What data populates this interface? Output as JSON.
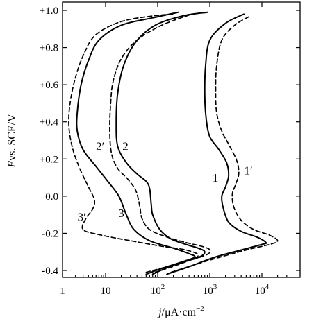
{
  "chart_data": {
    "type": "line",
    "xlabel_italic": "j",
    "xlabel_rest": "/μA·cm",
    "xlabel_sup": "−2",
    "ylabel_italic": "E",
    "ylabel_rest": "vs. SCE/V",
    "xscale": "log",
    "xlim": [
      1,
      30000
    ],
    "ylim": [
      -0.43,
      1.02
    ],
    "grid": false,
    "x_ticks": [
      {
        "value": 1,
        "base": "1",
        "sup": ""
      },
      {
        "value": 10,
        "base": "10",
        "sup": ""
      },
      {
        "value": 100,
        "base": "10",
        "sup": "2"
      },
      {
        "value": 1000,
        "base": "10",
        "sup": "3"
      },
      {
        "value": 10000,
        "base": "10",
        "sup": "4"
      }
    ],
    "y_ticks": [
      {
        "value": 1.0,
        "label": "+1.0"
      },
      {
        "value": 0.8,
        "label": "+0.8"
      },
      {
        "value": 0.6,
        "label": "+0.6"
      },
      {
        "value": 0.4,
        "label": "+0.4"
      },
      {
        "value": 0.2,
        "label": "+0.2"
      },
      {
        "value": 0.0,
        "label": "0.0"
      },
      {
        "value": -0.2,
        "label": "-0.2"
      },
      {
        "value": -0.4,
        "label": "-0.4"
      }
    ],
    "series": [
      {
        "name": "1",
        "style": "solid",
        "label_at": [
          1280,
          0.1
        ],
        "points": [
          [
            150,
            -0.42
          ],
          [
            400,
            -0.38
          ],
          [
            1200,
            -0.33
          ],
          [
            4000,
            -0.29
          ],
          [
            10000,
            -0.26
          ],
          [
            12000,
            -0.25
          ],
          [
            8000,
            -0.22
          ],
          [
            4000,
            -0.19
          ],
          [
            2300,
            -0.14
          ],
          [
            1800,
            -0.06
          ],
          [
            1700,
            0.0
          ],
          [
            2000,
            0.05
          ],
          [
            2300,
            0.11
          ],
          [
            2100,
            0.18
          ],
          [
            1500,
            0.25
          ],
          [
            1000,
            0.32
          ],
          [
            850,
            0.42
          ],
          [
            800,
            0.55
          ],
          [
            830,
            0.7
          ],
          [
            1000,
            0.84
          ],
          [
            2000,
            0.93
          ],
          [
            4500,
            0.98
          ]
        ]
      },
      {
        "name": "1′",
        "style": "dashed",
        "label_at": [
          5500,
          0.14
        ],
        "points": [
          [
            180,
            -0.41
          ],
          [
            500,
            -0.37
          ],
          [
            1500,
            -0.33
          ],
          [
            5000,
            -0.29
          ],
          [
            14000,
            -0.26
          ],
          [
            20000,
            -0.24
          ],
          [
            14000,
            -0.21
          ],
          [
            7000,
            -0.18
          ],
          [
            4000,
            -0.13
          ],
          [
            2900,
            -0.06
          ],
          [
            2700,
            0.01
          ],
          [
            3100,
            0.06
          ],
          [
            3600,
            0.12
          ],
          [
            3300,
            0.19
          ],
          [
            2400,
            0.27
          ],
          [
            1700,
            0.35
          ],
          [
            1350,
            0.45
          ],
          [
            1300,
            0.57
          ],
          [
            1350,
            0.7
          ],
          [
            1700,
            0.84
          ],
          [
            3000,
            0.92
          ],
          [
            6000,
            0.97
          ]
        ]
      },
      {
        "name": "2",
        "style": "solid",
        "label_at": [
          24,
          0.27
        ],
        "points": [
          [
            60,
            -0.42
          ],
          [
            150,
            -0.38
          ],
          [
            600,
            -0.33
          ],
          [
            800,
            -0.3
          ],
          [
            600,
            -0.28
          ],
          [
            350,
            -0.26
          ],
          [
            180,
            -0.23
          ],
          [
            110,
            -0.18
          ],
          [
            80,
            -0.1
          ],
          [
            75,
            -0.04
          ],
          [
            70,
            0.04
          ],
          [
            60,
            0.08
          ],
          [
            40,
            0.12
          ],
          [
            25,
            0.18
          ],
          [
            17,
            0.27
          ],
          [
            16,
            0.4
          ],
          [
            17,
            0.55
          ],
          [
            22,
            0.7
          ],
          [
            38,
            0.83
          ],
          [
            90,
            0.92
          ],
          [
            300,
            0.97
          ],
          [
            900,
            0.99
          ]
        ]
      },
      {
        "name": "2′",
        "style": "dashed",
        "label_at": [
          7.5,
          0.27
        ],
        "points": [
          [
            60,
            -0.41
          ],
          [
            200,
            -0.37
          ],
          [
            800,
            -0.32
          ],
          [
            1000,
            -0.29
          ],
          [
            700,
            -0.27
          ],
          [
            350,
            -0.25
          ],
          [
            150,
            -0.22
          ],
          [
            70,
            -0.18
          ],
          [
            50,
            -0.12
          ],
          [
            45,
            -0.05
          ],
          [
            38,
            0.03
          ],
          [
            27,
            0.09
          ],
          [
            17,
            0.15
          ],
          [
            13,
            0.23
          ],
          [
            12,
            0.35
          ],
          [
            12.5,
            0.5
          ],
          [
            14,
            0.62
          ],
          [
            20,
            0.74
          ],
          [
            40,
            0.84
          ],
          [
            120,
            0.92
          ],
          [
            450,
            0.98
          ]
        ]
      },
      {
        "name": "3",
        "style": "solid",
        "label_at": [
          20,
          -0.09
        ],
        "points": [
          [
            80,
            -0.42
          ],
          [
            200,
            -0.37
          ],
          [
            500,
            -0.33
          ],
          [
            400,
            -0.31
          ],
          [
            200,
            -0.28
          ],
          [
            70,
            -0.24
          ],
          [
            35,
            -0.18
          ],
          [
            25,
            -0.1
          ],
          [
            18,
            0.0
          ],
          [
            11,
            0.08
          ],
          [
            6,
            0.16
          ],
          [
            3,
            0.25
          ],
          [
            2.2,
            0.35
          ],
          [
            2.2,
            0.45
          ],
          [
            2.7,
            0.6
          ],
          [
            4,
            0.73
          ],
          [
            7,
            0.84
          ],
          [
            20,
            0.92
          ],
          [
            80,
            0.96
          ],
          [
            250,
            0.99
          ]
        ]
      },
      {
        "name": "3′",
        "style": "dashed",
        "label_at": [
          2.8,
          -0.11
        ],
        "points": [
          [
            90,
            -0.41
          ],
          [
            300,
            -0.36
          ],
          [
            600,
            -0.32
          ],
          [
            350,
            -0.29
          ],
          [
            120,
            -0.27
          ],
          [
            30,
            -0.24
          ],
          [
            8,
            -0.21
          ],
          [
            3,
            -0.18
          ],
          [
            3.5,
            -0.12
          ],
          [
            5,
            -0.07
          ],
          [
            5.5,
            -0.02
          ],
          [
            4,
            0.05
          ],
          [
            2.5,
            0.15
          ],
          [
            1.7,
            0.26
          ],
          [
            1.4,
            0.38
          ],
          [
            1.5,
            0.5
          ],
          [
            2.0,
            0.64
          ],
          [
            3.2,
            0.77
          ],
          [
            6,
            0.87
          ],
          [
            20,
            0.94
          ],
          [
            80,
            0.97
          ],
          [
            200,
            0.98
          ]
        ]
      }
    ]
  }
}
